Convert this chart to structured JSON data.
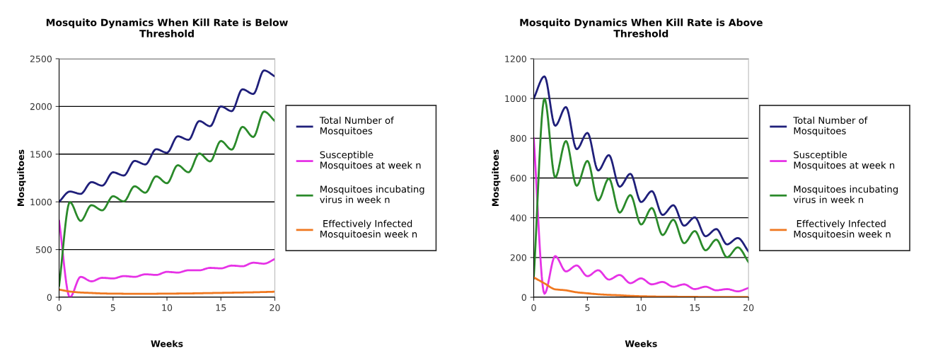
{
  "chart_data": [
    {
      "type": "line",
      "title": "Mosquito Dynamics When Kill Rate is Below\nThreshold",
      "xlabel": "Weeks",
      "ylabel": "Mosquitoes",
      "x": [
        0,
        1,
        2,
        3,
        4,
        5,
        6,
        7,
        8,
        9,
        10,
        11,
        12,
        13,
        14,
        15,
        16,
        17,
        18,
        19,
        20
      ],
      "xlim": [
        0,
        20
      ],
      "xticks": [
        0,
        5,
        10,
        15,
        20
      ],
      "ylim": [
        0,
        2500
      ],
      "yticks": [
        0,
        500,
        1000,
        1500,
        2000,
        2500
      ],
      "grid": "y",
      "legend": "right",
      "marker": "none",
      "line_style": "solid",
      "series": [
        {
          "name": "Total Number of\nMosquitoes",
          "color": "#1f1f7a",
          "values": [
            1000,
            1108,
            1084,
            1207,
            1170,
            1310,
            1276,
            1429,
            1392,
            1552,
            1515,
            1687,
            1650,
            1847,
            1793,
            2000,
            1951,
            2180,
            2131,
            2377,
            2315
          ]
        },
        {
          "name": "Susceptible\nMosquitoes at week n",
          "color": "#e632e6",
          "values": [
            800,
            0,
            214,
            167,
            204,
            197,
            222,
            214,
            241,
            234,
            266,
            259,
            283,
            283,
            308,
            303,
            332,
            325,
            362,
            352,
            401
          ]
        },
        {
          "name": "Mosquitoes incubating\nvirus in week n",
          "color": "#2a8a2a",
          "values": [
            120,
            997,
            800,
            965,
            911,
            1059,
            1005,
            1163,
            1096,
            1268,
            1195,
            1384,
            1310,
            1507,
            1424,
            1638,
            1547,
            1786,
            1680,
            1946,
            1847
          ]
        },
        {
          "name": " Effectively Infected\nMosquitoesin week n",
          "color": "#f07820",
          "values": [
            80,
            60,
            50,
            45,
            40,
            38,
            37,
            36,
            36,
            37,
            38,
            39,
            40,
            42,
            44,
            46,
            48,
            50,
            52,
            55,
            58
          ]
        }
      ]
    },
    {
      "type": "line",
      "title": "Mosquito Dynamics When Kill Rate is Above\nThreshold",
      "xlabel": "Weeks",
      "ylabel": "Mosquitoes",
      "x": [
        0,
        1,
        2,
        3,
        4,
        5,
        6,
        7,
        8,
        9,
        10,
        11,
        12,
        13,
        14,
        15,
        16,
        17,
        18,
        19,
        20
      ],
      "xlim": [
        0,
        20
      ],
      "xticks": [
        0,
        5,
        10,
        15,
        20
      ],
      "ylim": [
        0,
        1200
      ],
      "yticks": [
        0,
        200,
        400,
        600,
        800,
        1000,
        1200
      ],
      "grid": "y",
      "legend": "right",
      "marker": "none",
      "line_style": "solid",
      "series": [
        {
          "name": "Total Number of\nMosquitoes",
          "color": "#1f1f7a",
          "values": [
            1000,
            1111,
            863,
            957,
            745,
            827,
            638,
            715,
            556,
            621,
            479,
            534,
            414,
            463,
            360,
            402,
            307,
            343,
            266,
            298,
            230
          ]
        },
        {
          "name": "Susceptible\nMosquitoes at week n",
          "color": "#e632e6",
          "values": [
            800,
            18,
            207,
            130,
            160,
            106,
            136,
            89,
            112,
            71,
            95,
            65,
            77,
            53,
            65,
            41,
            53,
            35,
            41,
            30,
            47
          ]
        },
        {
          "name": "Mosquitoes incubating\nvirus in week n",
          "color": "#2a8a2a",
          "values": [
            95,
            999,
            603,
            786,
            561,
            686,
            487,
            597,
            426,
            514,
            366,
            449,
            313,
            390,
            272,
            333,
            236,
            290,
            201,
            251,
            177
          ]
        },
        {
          "name": " Effectively Infected\nMosquitoesin week n",
          "color": "#f07820",
          "values": [
            100,
            70,
            40,
            35,
            25,
            20,
            15,
            12,
            10,
            7,
            5,
            4,
            3,
            3,
            2,
            2,
            1,
            1,
            1,
            1,
            1
          ]
        }
      ]
    }
  ]
}
